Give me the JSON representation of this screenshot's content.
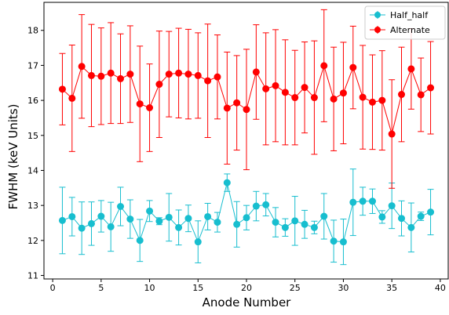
{
  "chart_data": {
    "type": "scatter",
    "xlabel": "Anode Number",
    "ylabel": "FWHM (keV Units)",
    "xlim": [
      -0.9,
      40.9
    ],
    "ylim": [
      10.9,
      18.8
    ],
    "xticks": [
      0,
      5,
      10,
      15,
      20,
      25,
      30,
      35,
      40
    ],
    "yticks": [
      11,
      12,
      13,
      14,
      15,
      16,
      17,
      18
    ],
    "grid": false,
    "legend_position": "top-right",
    "x": [
      1,
      2,
      3,
      4,
      5,
      6,
      7,
      8,
      9,
      10,
      11,
      12,
      13,
      14,
      15,
      16,
      17,
      18,
      19,
      20,
      21,
      22,
      23,
      24,
      25,
      26,
      27,
      28,
      29,
      30,
      31,
      32,
      33,
      34,
      35,
      36,
      37,
      38,
      39
    ],
    "series": [
      {
        "name": "Half_half",
        "color": "#17becf",
        "marker": "circle",
        "values": [
          12.57,
          12.68,
          12.35,
          12.48,
          12.69,
          12.39,
          12.97,
          12.61,
          12.0,
          12.84,
          12.55,
          12.66,
          12.37,
          12.63,
          11.96,
          12.68,
          12.52,
          13.65,
          12.46,
          12.65,
          12.98,
          13.02,
          12.52,
          12.37,
          12.56,
          12.46,
          12.37,
          12.69,
          11.98,
          11.96,
          13.09,
          13.12,
          13.12,
          12.67,
          12.99,
          12.63,
          12.37,
          12.69,
          12.81
        ],
        "errors": [
          0.95,
          0.55,
          0.75,
          0.62,
          0.45,
          0.7,
          0.55,
          0.55,
          0.6,
          0.3,
          0.1,
          0.68,
          0.5,
          0.38,
          0.6,
          0.38,
          0.28,
          0.25,
          0.65,
          0.35,
          0.42,
          0.32,
          0.42,
          0.25,
          0.7,
          0.4,
          0.18,
          0.65,
          0.6,
          0.65,
          0.95,
          0.4,
          0.35,
          0.18,
          0.65,
          0.5,
          0.7,
          0.12,
          0.65
        ]
      },
      {
        "name": "Alternate",
        "color": "#ff0000",
        "marker": "circle",
        "values": [
          16.32,
          16.06,
          16.97,
          16.71,
          16.69,
          16.78,
          16.62,
          16.75,
          15.9,
          15.79,
          16.46,
          16.75,
          16.78,
          16.75,
          16.71,
          16.56,
          16.67,
          15.78,
          15.93,
          15.74,
          16.81,
          16.33,
          16.42,
          16.23,
          16.08,
          16.37,
          16.08,
          16.99,
          16.04,
          16.21,
          16.94,
          16.09,
          15.95,
          16.0,
          15.04,
          16.17,
          16.9,
          16.16,
          16.36
        ],
        "errors": [
          1.02,
          1.52,
          1.48,
          1.46,
          1.38,
          1.44,
          1.28,
          1.38,
          1.65,
          1.25,
          1.52,
          1.22,
          1.28,
          1.28,
          1.22,
          1.62,
          1.2,
          1.6,
          1.35,
          1.72,
          1.35,
          1.6,
          1.6,
          1.5,
          1.35,
          1.3,
          1.62,
          1.6,
          1.48,
          1.45,
          1.18,
          1.48,
          1.35,
          1.42,
          1.55,
          1.35,
          1.15,
          1.05,
          1.32
        ]
      }
    ]
  }
}
